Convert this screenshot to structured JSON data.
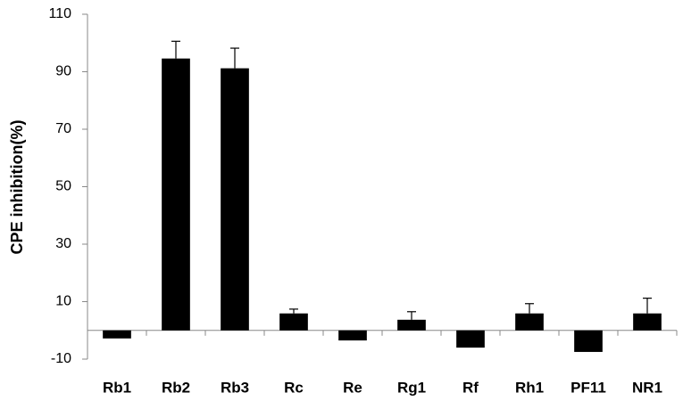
{
  "chart_data": {
    "type": "bar",
    "y_label": "CPE inhibition(%)",
    "categories": [
      "Rb1",
      "Rb2",
      "Rb3",
      "Rc",
      "Re",
      "Rg1",
      "Rf",
      "Rh1",
      "PF11",
      "NR1"
    ],
    "values": [
      -2.8,
      94.6,
      91.2,
      5.9,
      -3.5,
      3.7,
      -6,
      5.9,
      -7.5,
      5.9
    ],
    "errors": [
      null,
      6,
      7,
      1.5,
      null,
      2.8,
      null,
      3.4,
      null,
      5.3
    ],
    "color": "#000000",
    "ylim": [
      -10,
      110
    ],
    "yticks": [
      -10,
      10,
      30,
      50,
      70,
      90,
      110
    ],
    "grid": false
  }
}
